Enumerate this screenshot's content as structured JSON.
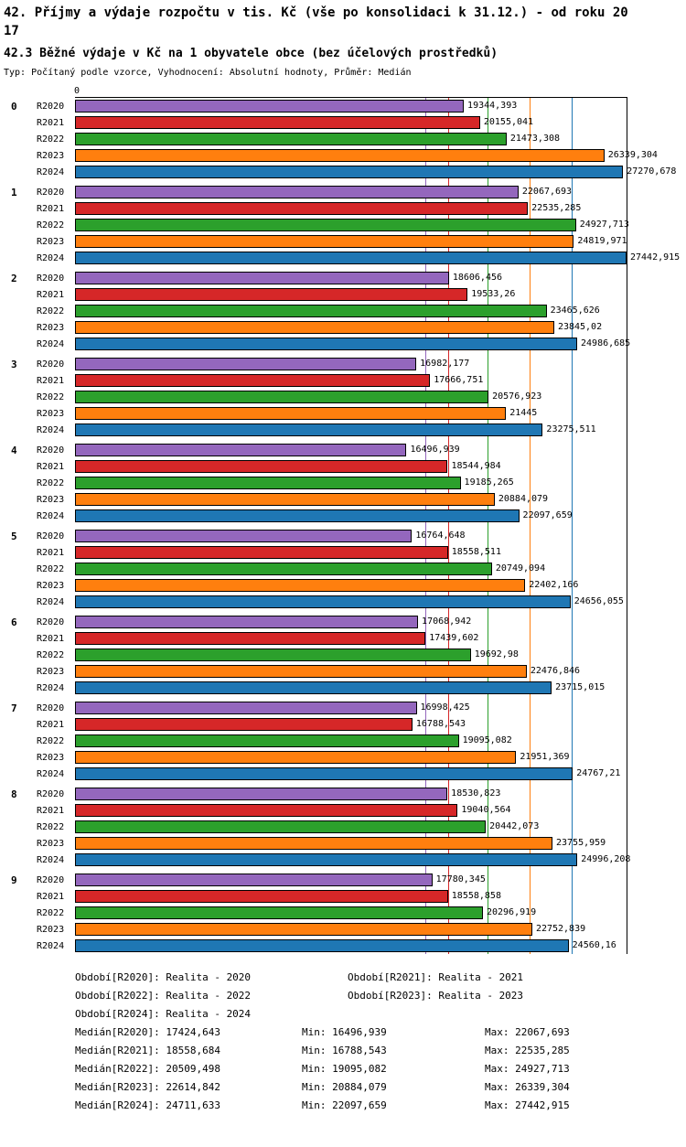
{
  "header": {
    "title_lines": [
      "42. Příjmy a výdaje rozpočtu v tis. Kč (vše po konsolidaci k 31.12.) - od roku 20",
      "17"
    ],
    "subtitle": "42.3 Běžné výdaje v Kč na 1 obyvatele obce (bez účelových prostředků)",
    "meta": "Typ: Počítaný podle vzorce, Vyhodnocení: Absolutní hodnoty, Průměr: Medián"
  },
  "chart_data": {
    "type": "bar",
    "orientation": "horizontal",
    "title": "42. Příjmy a výdaje rozpočtu v tis. Kč (vše po konsolidaci k 31.12.) - od roku 2017",
    "subtitle": "42.3 Běžné výdaje v Kč na 1 obyvatele obce (bez účelových prostředků)",
    "axis": {
      "origin_label": "0",
      "xmin": 0,
      "xmax": 27442.915
    },
    "grid": "median-lines-per-series",
    "series": [
      {
        "name": "R2020",
        "color": "#9467bd",
        "median": 17424.643
      },
      {
        "name": "R2021",
        "color": "#d62728",
        "median": 18558.684
      },
      {
        "name": "R2022",
        "color": "#2ca02c",
        "median": 20509.498
      },
      {
        "name": "R2023",
        "color": "#ff7f0e",
        "median": 22614.842
      },
      {
        "name": "R2024",
        "color": "#1f77b4",
        "median": 24711.633
      }
    ],
    "groups": [
      {
        "label": "0",
        "values": [
          "19344,393",
          "20155,041",
          "21473,308",
          "26339,304",
          "27270,678"
        ]
      },
      {
        "label": "1",
        "values": [
          "22067,693",
          "22535,285",
          "24927,713",
          "24819,971",
          "27442,915"
        ]
      },
      {
        "label": "2",
        "values": [
          "18606,456",
          "19533,26",
          "23465,626",
          "23845,02",
          "24986,685"
        ]
      },
      {
        "label": "3",
        "values": [
          "16982,177",
          "17666,751",
          "20576,923",
          "21445",
          "23275,511"
        ]
      },
      {
        "label": "4",
        "values": [
          "16496,939",
          "18544,984",
          "19185,265",
          "20884,079",
          "22097,659"
        ]
      },
      {
        "label": "5",
        "values": [
          "16764,648",
          "18558,511",
          "20749,094",
          "22402,166",
          "24656,055"
        ]
      },
      {
        "label": "6",
        "values": [
          "17068,942",
          "17439,602",
          "19692,98",
          "22476,846",
          "23715,015"
        ]
      },
      {
        "label": "7",
        "values": [
          "16998,425",
          "16788,543",
          "19095,082",
          "21951,369",
          "24767,21"
        ]
      },
      {
        "label": "8",
        "values": [
          "18530,823",
          "19040,564",
          "20442,073",
          "23755,959",
          "24996,208"
        ]
      },
      {
        "label": "9",
        "values": [
          "17780,345",
          "18558,858",
          "20296,919",
          "22752,839",
          "24560,16"
        ]
      }
    ]
  },
  "legend": {
    "periods": [
      [
        "Období[R2020]: Realita - 2020",
        "Období[R2021]: Realita - 2021"
      ],
      [
        "Období[R2022]: Realita - 2022",
        "Období[R2023]: Realita - 2023"
      ],
      [
        "Období[R2024]: Realita - 2024",
        ""
      ]
    ],
    "stats": [
      {
        "median": "Medián[R2020]: 17424,643",
        "min": "Min: 16496,939",
        "max": "Max: 22067,693"
      },
      {
        "median": "Medián[R2021]: 18558,684",
        "min": "Min: 16788,543",
        "max": "Max: 22535,285"
      },
      {
        "median": "Medián[R2022]: 20509,498",
        "min": "Min: 19095,082",
        "max": "Max: 24927,713"
      },
      {
        "median": "Medián[R2023]: 22614,842",
        "min": "Min: 20884,079",
        "max": "Max: 26339,304"
      },
      {
        "median": "Medián[R2024]: 24711,633",
        "min": "Min: 22097,659",
        "max": "Max: 27442,915"
      }
    ]
  }
}
